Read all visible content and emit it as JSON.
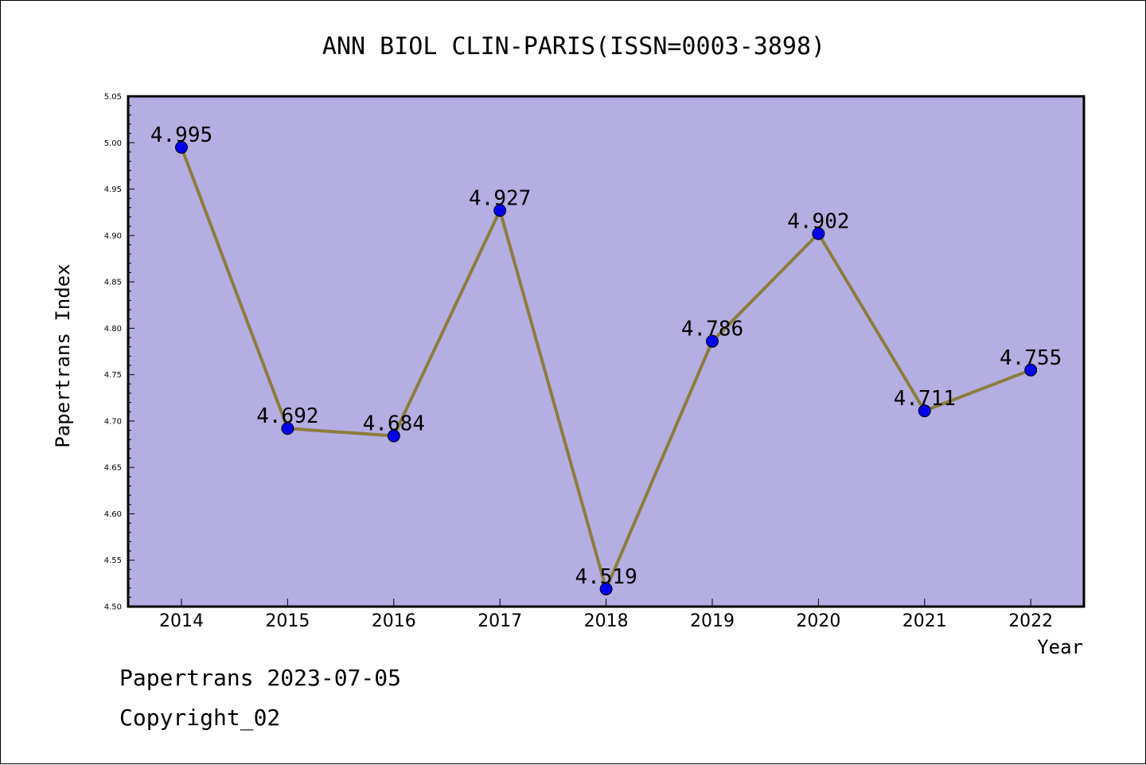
{
  "colors": {
    "plot_background": "#b5aee2",
    "line": "#8b7d3c",
    "marker": "#0000ee",
    "frame": "#000000"
  },
  "footer": {
    "line1": "Papertrans 2023-07-05",
    "line2": "Copyright_02"
  },
  "chart_data": {
    "type": "line",
    "title": "ANN BIOL CLIN-PARIS(ISSN=0003-3898)",
    "xlabel": "Year",
    "ylabel": "Papertrans Index",
    "ylim": [
      4.5,
      5.05
    ],
    "yticks": [
      "4.50",
      "4.55",
      "4.60",
      "4.65",
      "4.70",
      "4.75",
      "4.80",
      "4.85",
      "4.90",
      "4.95",
      "5.00",
      "5.05"
    ],
    "categories": [
      "2014",
      "2015",
      "2016",
      "2017",
      "2018",
      "2019",
      "2020",
      "2021",
      "2022"
    ],
    "values": [
      4.995,
      4.692,
      4.684,
      4.927,
      4.519,
      4.786,
      4.902,
      4.711,
      4.755
    ],
    "data_labels": [
      "4.995",
      "4.692",
      "4.684",
      "4.927",
      "4.519",
      "4.786",
      "4.902",
      "4.711",
      "4.755"
    ],
    "grid": false,
    "legend": "none"
  }
}
